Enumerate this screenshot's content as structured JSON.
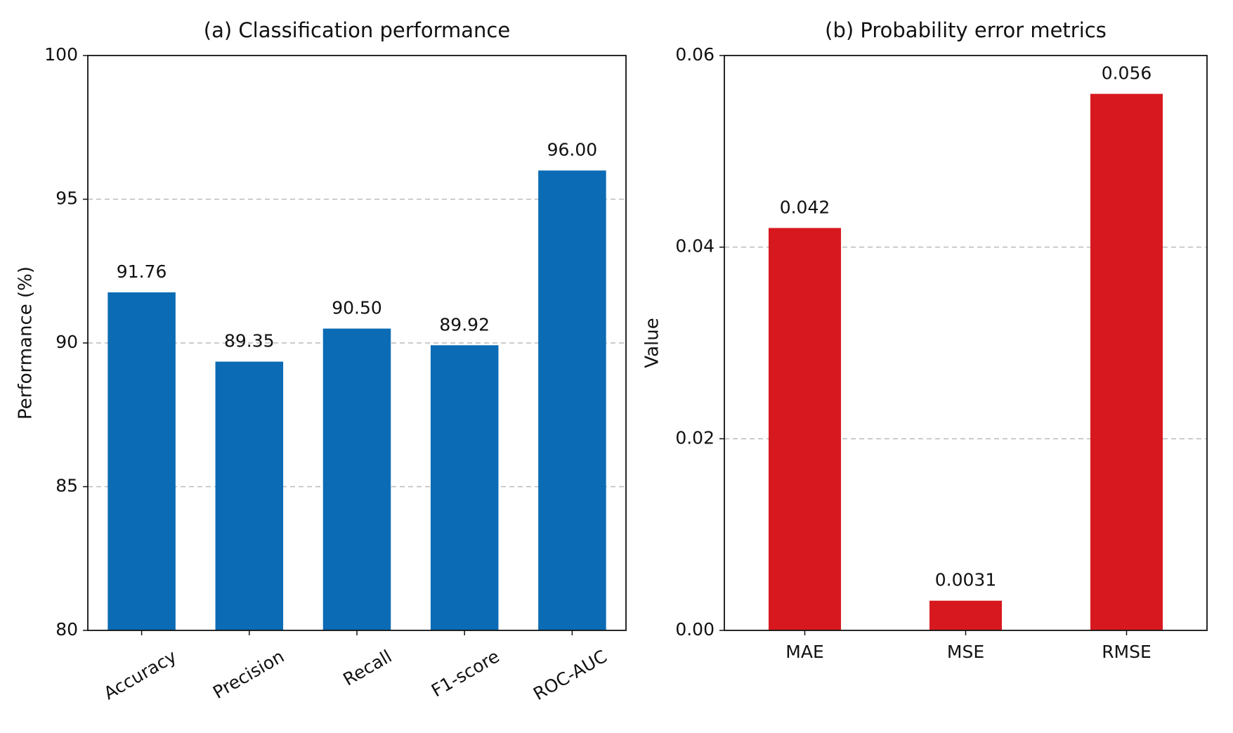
{
  "chart_data": [
    {
      "type": "bar",
      "title": "(a) Classification performance",
      "y_label": "Performance (%)",
      "categories": [
        "Accuracy",
        "Precision",
        "Recall",
        "F1-score",
        "ROC-AUC"
      ],
      "values": [
        91.76,
        89.35,
        90.5,
        89.92,
        96
      ],
      "value_labels": [
        "91.76",
        "89.35",
        "90.50",
        "89.92",
        "96.00"
      ],
      "color": "#0b6bb5",
      "ylim": [
        80,
        100
      ],
      "yticks": [
        80,
        85,
        90,
        95,
        100
      ],
      "grid": true
    },
    {
      "type": "bar",
      "title": "(b) Probability error metrics",
      "y_label": "Value",
      "categories": [
        "MAE",
        "MSE",
        "RMSE"
      ],
      "values": [
        0.042,
        0.0031,
        0.056
      ],
      "color": "#d7191f",
      "ylim": [
        0,
        0.06
      ],
      "yticks": [
        {
          "value": 0,
          "label": "0.00"
        },
        0.02,
        0.04,
        0.06
      ],
      "grid": true
    }
  ]
}
